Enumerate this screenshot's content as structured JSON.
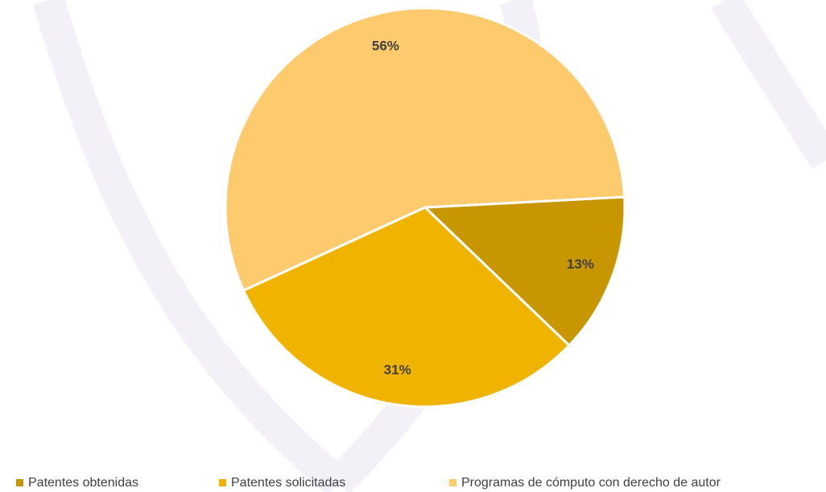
{
  "chart_data": {
    "type": "pie",
    "categories": [
      "Patentes obtenidas",
      "Patentes solicitadas",
      "Programas de cómputo con derecho de autor"
    ],
    "values": [
      13,
      31,
      56
    ],
    "value_labels": [
      "13%",
      "31%",
      "56%"
    ],
    "colors": [
      "#c89600",
      "#f0b400",
      "#fdca6e"
    ],
    "legend": "bottom"
  }
}
